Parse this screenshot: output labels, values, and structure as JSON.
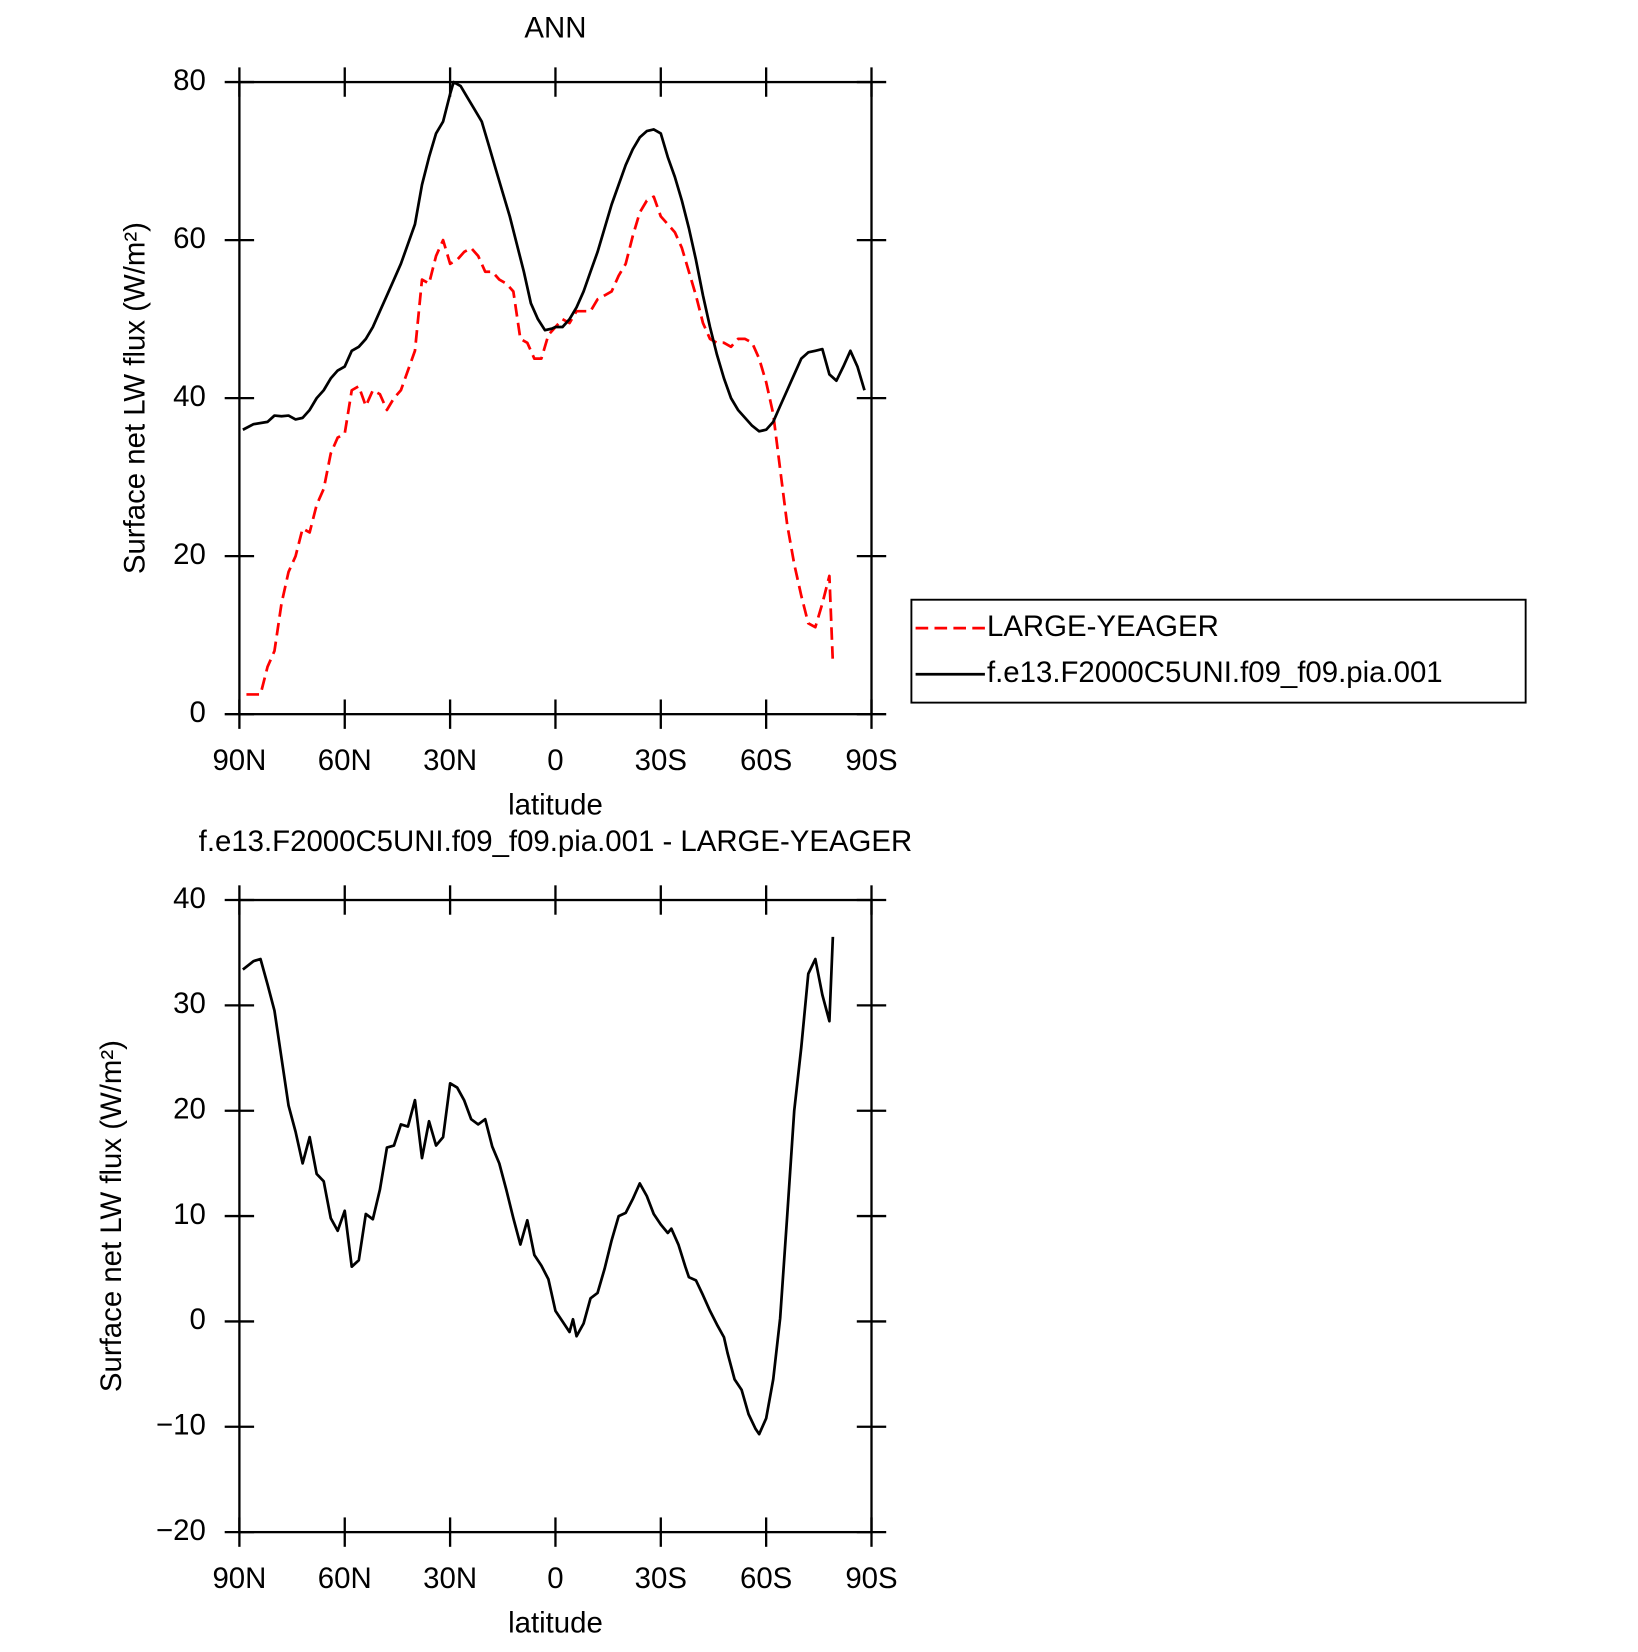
{
  "chart_data": [
    {
      "type": "line",
      "title": "ANN",
      "x_label": "latitude",
      "y_label": "Surface net LW flux (W/m²)",
      "xlim": [
        90,
        -90
      ],
      "xticks": [
        {
          "value": 90,
          "label": "90N"
        },
        {
          "value": 60,
          "label": "60N"
        },
        {
          "value": 30,
          "label": "30N"
        },
        0,
        {
          "value": -30,
          "label": "30S"
        },
        {
          "value": -60,
          "label": "60S"
        },
        {
          "value": -90,
          "label": "90S"
        }
      ],
      "ylim": [
        0,
        80
      ],
      "yticks": [
        0,
        20,
        40,
        60,
        80
      ],
      "legend": "right",
      "series": [
        {
          "name": "LARGE-YEAGER",
          "color": "#ff0000",
          "linestyle": "dashed",
          "x": [
            88,
            84,
            82,
            80,
            78,
            76,
            74,
            72,
            70,
            68,
            66,
            64,
            62,
            60,
            58,
            56,
            54,
            52,
            50,
            48,
            46,
            44,
            42,
            40,
            38,
            36,
            34,
            32,
            30,
            28,
            26,
            24,
            22,
            20,
            18,
            16,
            14,
            12,
            10,
            8,
            6,
            4,
            2,
            0,
            -2,
            -4,
            -6,
            -8,
            -10,
            -12,
            -14,
            -16,
            -18,
            -20,
            -22,
            -24,
            -26,
            -28,
            -30,
            -32,
            -34,
            -36,
            -38,
            -40,
            -42,
            -44,
            -46,
            -48,
            -50,
            -52,
            -54,
            -56,
            -58,
            -60,
            -62,
            -64,
            -66,
            -68,
            -70,
            -72,
            -74,
            -76,
            -78,
            -79
          ],
          "values": [
            2.5,
            2.5,
            6,
            8,
            14,
            18,
            20,
            23.5,
            23,
            26.5,
            28.5,
            33,
            35,
            35.5,
            41,
            41.5,
            39,
            41,
            40.5,
            38.5,
            40,
            41,
            43.5,
            46,
            55,
            54.5,
            58,
            60,
            57,
            57.5,
            58.5,
            59,
            58,
            56,
            56,
            55,
            54.5,
            53.5,
            47.5,
            47,
            45,
            45,
            48,
            49,
            50,
            49.5,
            51,
            51,
            51,
            52.5,
            53,
            53.5,
            55.5,
            57,
            60.5,
            63.5,
            65,
            65.5,
            63,
            62,
            61,
            59,
            56,
            53,
            49.5,
            47.5,
            47,
            47,
            46.5,
            47.5,
            47.5,
            47,
            45,
            42,
            38,
            31,
            24,
            19,
            15,
            11.5,
            11,
            14,
            17.5,
            6.5
          ]
        },
        {
          "name": "f.e13.F2000C5UNI.f09_f09.pia.001",
          "color": "#000000",
          "linestyle": "solid",
          "x": [
            89,
            86,
            82,
            80,
            78,
            76,
            74,
            72,
            70,
            68,
            66,
            64,
            62,
            60,
            58,
            56,
            54,
            52,
            50,
            48,
            46,
            44,
            42,
            40,
            38,
            36,
            34,
            32,
            30,
            29,
            27,
            25,
            23,
            21,
            19,
            17,
            15,
            13,
            11,
            9,
            7,
            5,
            3,
            1,
            0,
            -2,
            -4,
            -6,
            -8,
            -10,
            -12,
            -14,
            -16,
            -18,
            -20,
            -22,
            -24,
            -26,
            -28,
            -30,
            -32,
            -34,
            -36,
            -38,
            -40,
            -42,
            -44,
            -46,
            -48,
            -50,
            -52,
            -54,
            -56,
            -58,
            -60,
            -62,
            -64,
            -66,
            -68,
            -70,
            -72,
            -74,
            -76,
            -78,
            -80,
            -82,
            -84,
            -86,
            -88
          ],
          "values": [
            36,
            36.7,
            37,
            37.8,
            37.7,
            37.8,
            37.3,
            37.5,
            38.5,
            40,
            41,
            42.5,
            43.5,
            44,
            46,
            46.5,
            47.5,
            49,
            51,
            53,
            55,
            57,
            59.5,
            62,
            67,
            70.5,
            73.5,
            75,
            78.5,
            80,
            79.5,
            78,
            76.5,
            75,
            72,
            69,
            66,
            63,
            59.5,
            56,
            52,
            50,
            48.6,
            48.8,
            49,
            49,
            50,
            51.5,
            53.5,
            56,
            58.5,
            61.5,
            64.5,
            67,
            69.5,
            71.5,
            73,
            73.8,
            74,
            73.5,
            70.5,
            68,
            65,
            61.5,
            57.5,
            53,
            49,
            45.5,
            42.5,
            40,
            38.5,
            37.5,
            36.5,
            35.8,
            36,
            37,
            39,
            41,
            43,
            45,
            45.8,
            46,
            46.2,
            43,
            42.2,
            44,
            46,
            44,
            41
          ]
        }
      ]
    },
    {
      "type": "line",
      "title": "f.e13.F2000C5UNI.f09_f09.pia.001 - LARGE-YEAGER",
      "x_label": "latitude",
      "y_label": "Surface net LW flux (W/m²)",
      "xlim": [
        90,
        -90
      ],
      "xticks": [
        {
          "value": 90,
          "label": "90N"
        },
        {
          "value": 60,
          "label": "60N"
        },
        {
          "value": 30,
          "label": "30N"
        },
        0,
        {
          "value": -30,
          "label": "30S"
        },
        {
          "value": -60,
          "label": "60S"
        },
        {
          "value": -90,
          "label": "90S"
        }
      ],
      "ylim": [
        -20,
        40
      ],
      "yticks": [
        {
          "value": -20,
          "label": "−20"
        },
        {
          "value": -10,
          "label": "−10"
        },
        0,
        10,
        20,
        30,
        40
      ],
      "color": "#000000",
      "x": [
        89,
        86,
        84,
        82,
        80,
        78,
        76,
        74,
        72,
        70,
        68,
        66,
        64,
        62,
        60,
        58,
        56,
        54,
        52,
        50,
        48,
        46,
        44,
        42,
        40,
        38,
        36,
        34,
        32,
        30,
        28,
        26,
        24,
        22,
        20,
        18,
        16,
        14,
        12,
        10,
        8,
        6,
        4,
        2,
        0,
        -2,
        -4,
        -5,
        -6,
        -8,
        -10,
        -12,
        -14,
        -16,
        -18,
        -20,
        -22,
        -24,
        -26,
        -28,
        -30,
        -32,
        -33,
        -35,
        -37,
        -38,
        -40,
        -42,
        -44,
        -46,
        -48,
        -49,
        -51,
        -53,
        -55,
        -57,
        -58,
        -60,
        -62,
        -64,
        -66,
        -68,
        -70,
        -72,
        -74,
        -76,
        -78,
        -79
      ],
      "values": [
        33.4,
        34.2,
        34.4,
        32,
        29.5,
        25,
        20.5,
        18,
        15,
        17.5,
        14,
        13.3,
        9.8,
        8.6,
        10.5,
        5.2,
        5.8,
        10.2,
        9.7,
        12.5,
        16.5,
        16.7,
        18.7,
        18.5,
        21,
        15.5,
        19,
        16.7,
        17.5,
        22.6,
        22.2,
        21,
        19.2,
        18.7,
        19.2,
        16.6,
        15,
        12.5,
        9.8,
        7.3,
        9.6,
        6.3,
        5.3,
        4,
        1,
        0,
        -1,
        0.2,
        -1.4,
        -0.2,
        2.2,
        2.7,
        5,
        7.7,
        10,
        10.3,
        11.6,
        13.1,
        11.9,
        10.2,
        9.2,
        8.4,
        8.8,
        7.3,
        5.2,
        4.2,
        3.9,
        2.5,
        1,
        -0.3,
        -1.5,
        -3,
        -5.5,
        -6.5,
        -8.8,
        -10.2,
        -10.7,
        -9.2,
        -5.5,
        0.3,
        10,
        20,
        26,
        33,
        34.4,
        31,
        28.5,
        36.5
      ]
    }
  ]
}
